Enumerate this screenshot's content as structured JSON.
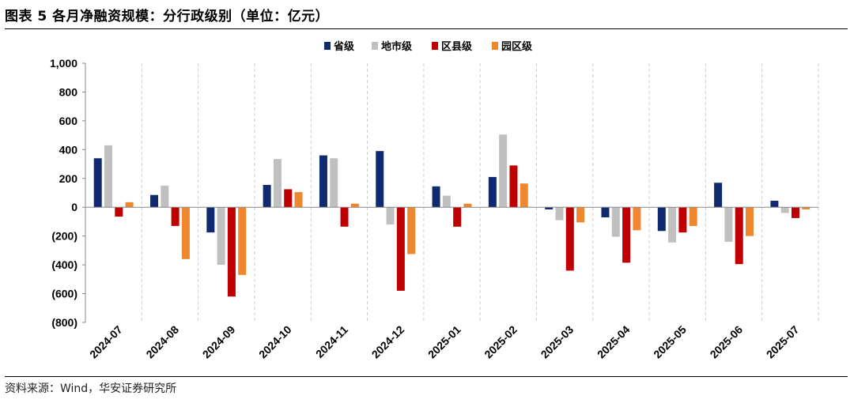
{
  "page": {
    "title": "图表 5 各月净融资规模：分行政级别（单位：亿元）",
    "source": "资料来源：Wind，华安证券研究所"
  },
  "chart_data": {
    "type": "bar",
    "categories": [
      "2024-07",
      "2024-08",
      "2024-09",
      "2024-10",
      "2024-11",
      "2024-12",
      "2025-01",
      "2025-02",
      "2025-03",
      "2025-04",
      "2025-05",
      "2025-06",
      "2025-07"
    ],
    "series": [
      {
        "name": "省级",
        "color": "#0f2a6e",
        "values": [
          340,
          85,
          -175,
          155,
          360,
          390,
          145,
          210,
          -15,
          -70,
          -165,
          170,
          45
        ]
      },
      {
        "name": "地市级",
        "color": "#c0c0c0",
        "values": [
          430,
          150,
          -400,
          335,
          340,
          -120,
          80,
          505,
          -90,
          -205,
          -245,
          -240,
          -40
        ]
      },
      {
        "name": "区县级",
        "color": "#c00000",
        "values": [
          -65,
          -130,
          -620,
          125,
          -135,
          -580,
          -135,
          290,
          -440,
          -385,
          -175,
          -395,
          -75
        ]
      },
      {
        "name": "园区级",
        "color": "#f0862e",
        "values": [
          35,
          -360,
          -470,
          105,
          25,
          -325,
          25,
          165,
          -105,
          -160,
          -130,
          -200,
          -15
        ]
      }
    ],
    "ylim": [
      -800,
      1000
    ],
    "yticks": [
      -800,
      -600,
      -400,
      -200,
      0,
      200,
      400,
      600,
      800,
      1000
    ],
    "ytick_labels": [
      "(800)",
      "(600)",
      "(400)",
      "(200)",
      "0",
      "200",
      "400",
      "600",
      "800",
      "1,000"
    ],
    "grid": "vertical dashed between categories",
    "legend_position": "top-center"
  }
}
